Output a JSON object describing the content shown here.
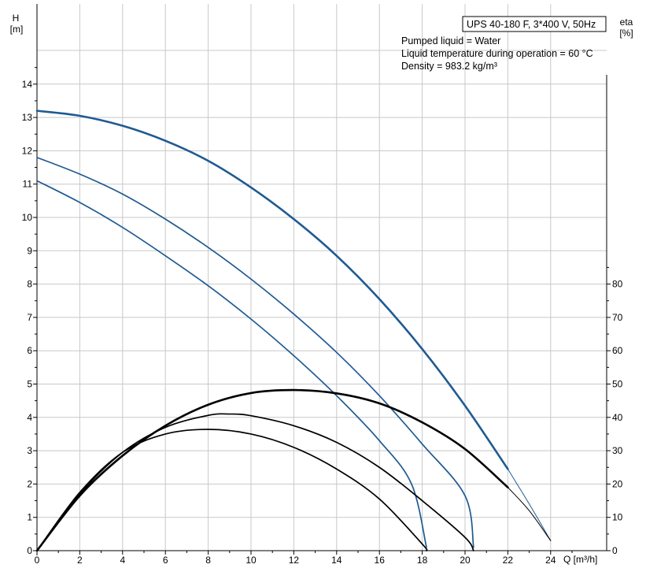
{
  "chart_data": {
    "type": "line",
    "title": "UPS 40-180 F, 3*400 V, 50Hz",
    "annotations": [
      "Pumped liquid = Water",
      "Liquid temperature during operation = 60 °C",
      "Density = 983.2 kg/m³"
    ],
    "left_axis": {
      "label_top": "H",
      "label_bottom": "[m]",
      "ylim": [
        0,
        15
      ],
      "ticks": [
        0,
        1,
        2,
        3,
        4,
        5,
        6,
        7,
        8,
        9,
        10,
        11,
        12,
        13,
        14
      ]
    },
    "right_axis": {
      "label_top": "eta",
      "label_bottom": "[%]",
      "ylim": [
        0,
        150
      ],
      "ticks": [
        0,
        10,
        20,
        30,
        40,
        50,
        60,
        70,
        80
      ]
    },
    "x_axis": {
      "label": "Q [m³/h]",
      "xlim": [
        0,
        26
      ],
      "ticks": [
        0,
        2,
        4,
        6,
        8,
        10,
        12,
        14,
        16,
        18,
        20,
        22,
        24
      ]
    },
    "grid": true,
    "colors": {
      "head": "#1f5a92",
      "efficiency": "#000000"
    },
    "series": [
      {
        "kind": "head",
        "axis": "left",
        "width": 2.6,
        "points": [
          [
            0,
            13.2
          ],
          [
            2,
            13.05
          ],
          [
            4,
            12.75
          ],
          [
            6,
            12.3
          ],
          [
            8,
            11.7
          ],
          [
            10,
            10.9
          ],
          [
            12,
            9.95
          ],
          [
            14,
            8.85
          ],
          [
            16,
            7.55
          ],
          [
            18,
            6.05
          ],
          [
            20,
            4.35
          ],
          [
            22,
            2.45
          ]
        ]
      },
      {
        "kind": "head",
        "axis": "left",
        "width": 1,
        "points": [
          [
            22,
            2.45
          ],
          [
            23,
            1.4
          ],
          [
            24,
            0.3
          ]
        ]
      },
      {
        "kind": "head",
        "axis": "left",
        "width": 1.7,
        "points": [
          [
            0,
            11.8
          ],
          [
            2,
            11.3
          ],
          [
            4,
            10.7
          ],
          [
            6,
            9.95
          ],
          [
            8,
            9.1
          ],
          [
            10,
            8.15
          ],
          [
            12,
            7.1
          ],
          [
            14,
            5.95
          ],
          [
            16,
            4.65
          ],
          [
            18,
            3.2
          ],
          [
            20,
            1.65
          ],
          [
            20.4,
            0.1
          ]
        ]
      },
      {
        "kind": "head",
        "axis": "left",
        "width": 1.7,
        "points": [
          [
            0,
            11.1
          ],
          [
            2,
            10.45
          ],
          [
            4,
            9.7
          ],
          [
            6,
            8.85
          ],
          [
            8,
            7.95
          ],
          [
            10,
            6.95
          ],
          [
            12,
            5.85
          ],
          [
            14,
            4.65
          ],
          [
            16,
            3.3
          ],
          [
            17.5,
            2.0
          ],
          [
            18.2,
            0.1
          ]
        ]
      },
      {
        "kind": "efficiency",
        "axis": "right",
        "width": 2.6,
        "points": [
          [
            0,
            0
          ],
          [
            2,
            16.5
          ],
          [
            4,
            28.5
          ],
          [
            6,
            37.5
          ],
          [
            8,
            43.8
          ],
          [
            10,
            47.3
          ],
          [
            12,
            48.2
          ],
          [
            14,
            47.2
          ],
          [
            16,
            44.2
          ],
          [
            18,
            38.5
          ],
          [
            20,
            30.5
          ],
          [
            22,
            19
          ]
        ]
      },
      {
        "kind": "efficiency",
        "axis": "right",
        "width": 1,
        "points": [
          [
            22,
            19
          ],
          [
            23,
            12
          ],
          [
            24,
            3
          ]
        ]
      },
      {
        "kind": "efficiency",
        "axis": "right",
        "width": 1.7,
        "points": [
          [
            0,
            0
          ],
          [
            2,
            17
          ],
          [
            4,
            29.5
          ],
          [
            6,
            37
          ],
          [
            8,
            40.6
          ],
          [
            9,
            41
          ],
          [
            10,
            40.5
          ],
          [
            12,
            37.5
          ],
          [
            14,
            32.5
          ],
          [
            16,
            25
          ],
          [
            18,
            15
          ],
          [
            20,
            4
          ],
          [
            20.4,
            0
          ]
        ]
      },
      {
        "kind": "efficiency",
        "axis": "right",
        "width": 1.7,
        "points": [
          [
            0,
            0
          ],
          [
            2,
            17.5
          ],
          [
            4,
            29.5
          ],
          [
            6,
            35
          ],
          [
            8,
            36.4
          ],
          [
            10,
            35
          ],
          [
            12,
            31
          ],
          [
            14,
            24.5
          ],
          [
            16,
            15.5
          ],
          [
            18,
            2
          ],
          [
            18.2,
            0
          ]
        ]
      }
    ]
  }
}
